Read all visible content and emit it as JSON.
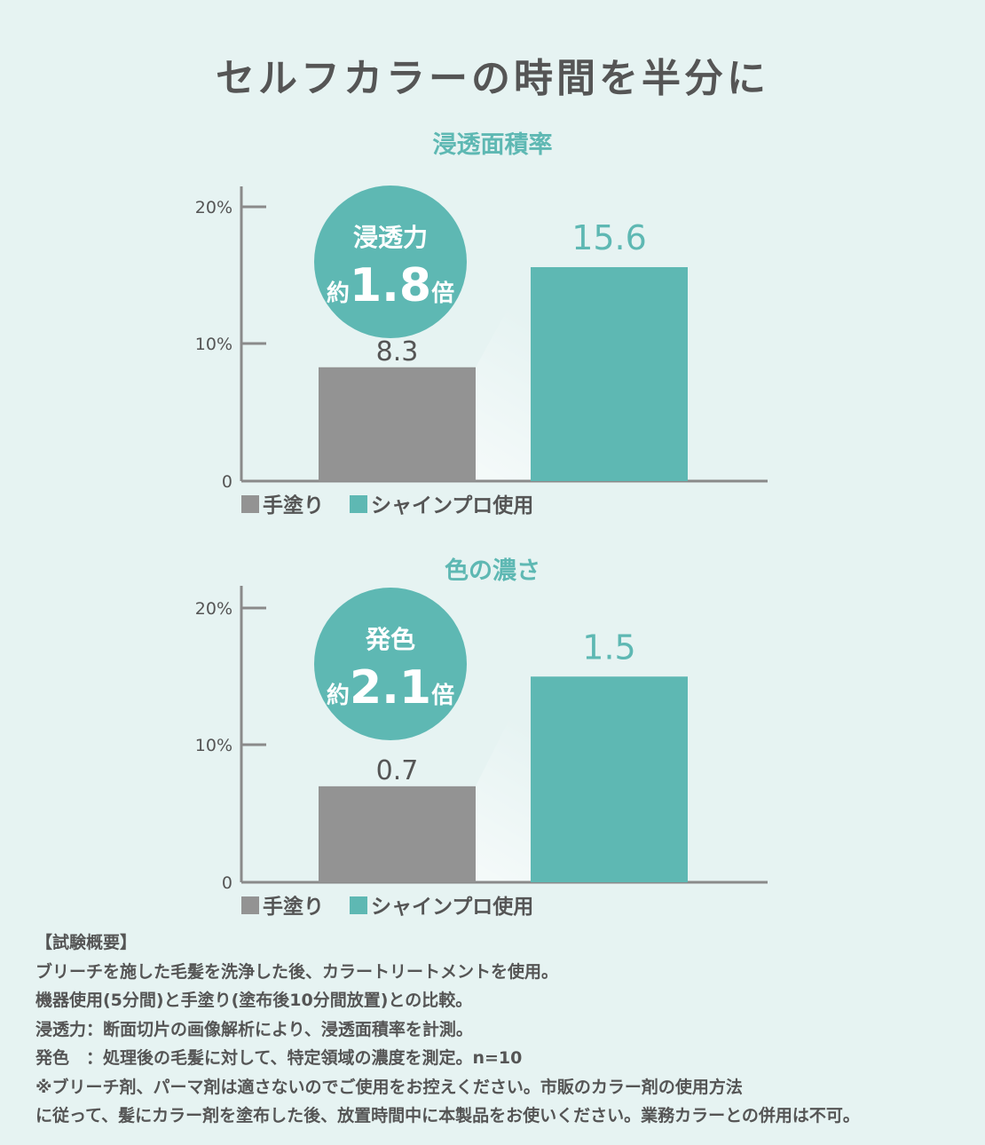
{
  "page": {
    "title": "セルフカラーの時間を半分に"
  },
  "colors": {
    "teal": "#5eb8b3",
    "gray": "#939393",
    "axis": "#8a8a8a",
    "title_teal": "#5eb8b3"
  },
  "charts": [
    {
      "title": "浸透面積率",
      "badge": {
        "line1": "浸透力",
        "prefix": "約",
        "value": "1.8",
        "suffix": "倍"
      },
      "legend": [
        "手塗り",
        "シャインプロ使用"
      ]
    },
    {
      "title": "色の濃さ",
      "badge": {
        "line1": "発色",
        "prefix": "約",
        "value": "2.1",
        "suffix": "倍"
      },
      "legend": [
        "手塗り",
        "シャインプロ使用"
      ]
    }
  ],
  "chart_data": [
    {
      "type": "bar",
      "title": "浸透面積率",
      "categories": [
        "手塗り",
        "シャインプロ使用"
      ],
      "values": [
        8.3,
        15.6
      ],
      "data_labels": [
        "8.3",
        "15.6"
      ],
      "ylim": [
        0,
        20
      ],
      "yticks": [
        "0",
        "10%",
        "20%"
      ],
      "legend_position": "bottom-left"
    },
    {
      "type": "bar",
      "title": "色の濃さ",
      "categories": [
        "手塗り",
        "シャインプロ使用"
      ],
      "values": [
        0.7,
        1.5
      ],
      "data_labels": [
        "0.7",
        "1.5"
      ],
      "ylim": [
        0,
        2
      ],
      "yticks": [
        "0",
        "10%",
        "20%"
      ],
      "legend_position": "bottom-left"
    }
  ],
  "notes": {
    "heading": "【試験概要】",
    "lines": [
      "ブリーチを施した毛髪を洗浄した後、カラートリートメントを使用。",
      "機器使用(5分間)と手塗り(塗布後10分間放置)との比較。",
      "浸透力：断面切片の画像解析により、浸透面積率を計測。",
      "発色　：処理後の毛髪に対して、特定領域の濃度を測定。n=10",
      "※ブリーチ剤、パーマ剤は適さないのでご使用をお控えください。市販のカラー剤の使用方法",
      "に従って、髪にカラー剤を塗布した後、放置時間中に本製品をお使いください。業務カラーとの併用は不可。"
    ]
  }
}
